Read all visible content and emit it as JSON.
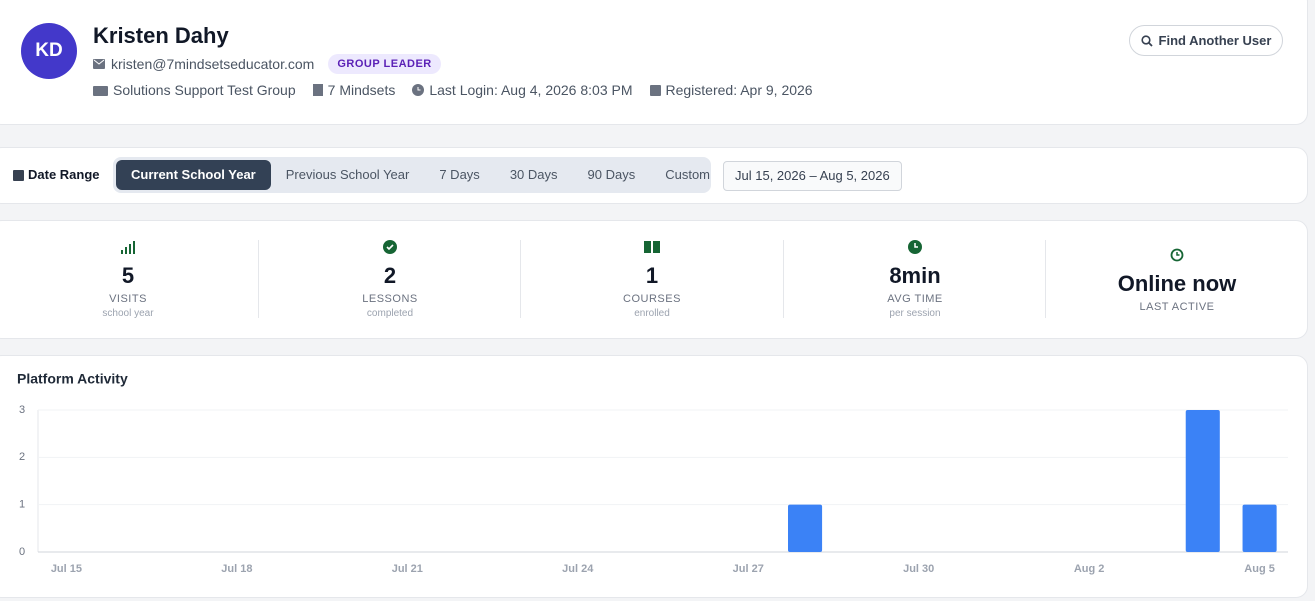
{
  "header": {
    "initials": "KD",
    "name": "Kristen Dahy",
    "email": "kristen@7mindsetseducator.com",
    "badge": "GROUP LEADER",
    "group": "Solutions Support Test Group",
    "organization": "7 Mindsets",
    "last_login": "Last Login: Aug 4, 2026 8:03 PM",
    "registered": "Registered: Apr 9, 2026",
    "button": "Find Another User"
  },
  "date_range": {
    "label": "Date Range",
    "tabs": [
      "Current School Year",
      "Previous School Year",
      "7 Days",
      "30 Days",
      "90 Days",
      "Custom"
    ],
    "range": "Jul 15, 2026 – Aug 5, 2026"
  },
  "stats": [
    {
      "value": 5,
      "label": "VISITS",
      "sub": "school year"
    },
    {
      "value": 2,
      "label": "LESSONS",
      "sub": "completed"
    },
    {
      "value": 1,
      "label": "COURSES",
      "sub": "enrolled"
    },
    {
      "value": "8min",
      "label": "AVG TIME",
      "sub": "per session"
    },
    {
      "value": "Online now",
      "label": "LAST ACTIVE"
    }
  ],
  "chart_data": {
    "type": "bar",
    "title": "Platform Activity",
    "categories": [
      "Jul 15",
      null,
      null,
      "Jul 18",
      null,
      null,
      "Jul 21",
      null,
      null,
      "Jul 24",
      null,
      null,
      "Jul 27",
      null,
      null,
      "Jul 30",
      null,
      null,
      "Aug 2",
      null,
      null,
      "Aug 5"
    ],
    "values": [
      0,
      0,
      0,
      0,
      0,
      0,
      0,
      0,
      0,
      0,
      0,
      0,
      0,
      1,
      0,
      0,
      0,
      0,
      0,
      0,
      3,
      1
    ],
    "color": "#3b82f6",
    "ylim": [
      0,
      3
    ],
    "yticks": [
      0,
      1,
      2,
      3
    ],
    "grid": true
  }
}
